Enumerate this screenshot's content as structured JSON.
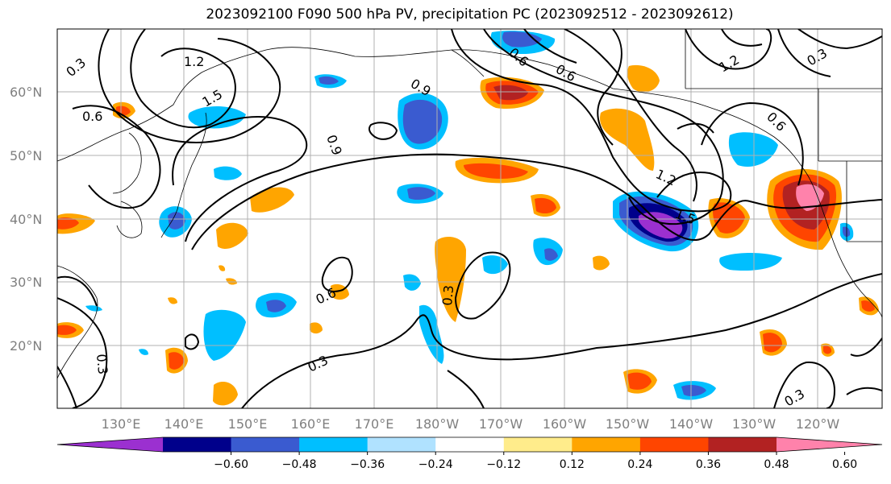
{
  "title": "2023092100 F090 500 hPa PV, precipitation PC (2023092512 - 2023092612)",
  "lat_labels": [
    "60°N",
    "50°N",
    "40°N",
    "30°N",
    "20°N"
  ],
  "lon_labels": [
    "130°E",
    "140°E",
    "150°E",
    "160°E",
    "170°E",
    "180°W",
    "170°W",
    "160°W",
    "150°W",
    "140°W",
    "130°W",
    "120°W"
  ],
  "colorbar": {
    "colors": [
      "#9b30d0",
      "#00008b",
      "#3a5bd0",
      "#00bfff",
      "#b0e2ff",
      "#ffffff",
      "#ffec8b",
      "#ffa500",
      "#ff4500",
      "#b22222",
      "#ff82ab"
    ],
    "tick_labels": [
      "−0.60",
      "−0.48",
      "−0.36",
      "−0.24",
      "−0.12",
      "0.12",
      "0.24",
      "0.36",
      "0.48",
      "0.60"
    ]
  },
  "contour_labels": [
    "0.3",
    "1.2",
    "1.5",
    "0.6",
    "0.9",
    "1.2",
    "0.6",
    "0.6",
    "0.9",
    "1.2",
    "1.5",
    "0.6",
    "0.6",
    "0.3",
    "0.3",
    "0.3",
    "0.3",
    "0.3"
  ]
}
